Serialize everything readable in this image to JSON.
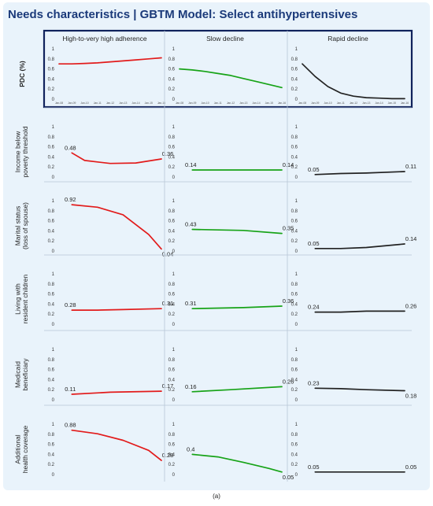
{
  "title": "Needs characteristics | GBTM Model: Select antihypertensives",
  "caption": "(a)",
  "colors": {
    "high_adherence": "#e21b1b",
    "slow_decline": "#17a317",
    "rapid_decline": "#222222",
    "panel_bg": "#e9f3fb",
    "title": "#1b3a7a",
    "highlight_border": "#10225c"
  },
  "chart_data": {
    "type": "line",
    "columns": [
      "High-to-very high adherence",
      "Slow decline",
      "Rapid decline"
    ],
    "x": [
      "Jan-08",
      "Jan-09",
      "Jan-10",
      "Jan-11",
      "Jan-12",
      "Jan-13",
      "Jan-14",
      "Jan-15",
      "Jan-16"
    ],
    "y_ticks": [
      "0",
      "0.2",
      "0.4",
      "0.6",
      "0.8",
      "1"
    ],
    "ylim": [
      0,
      1
    ],
    "rows": [
      {
        "label": "PDC (%)",
        "series": [
          {
            "x": [
              0,
              1,
              2,
              3,
              4,
              5,
              6,
              7,
              8
            ],
            "values": [
              0.7,
              0.7,
              0.71,
              0.72,
              0.74,
              0.76,
              0.78,
              0.8,
              0.82
            ],
            "labels": []
          },
          {
            "x": [
              0,
              1,
              2,
              3,
              4,
              5,
              6,
              7,
              8
            ],
            "values": [
              0.6,
              0.58,
              0.55,
              0.51,
              0.47,
              0.41,
              0.35,
              0.29,
              0.23
            ],
            "labels": []
          },
          {
            "x": [
              0,
              1,
              2,
              3,
              4,
              5,
              6,
              7,
              8
            ],
            "values": [
              0.7,
              0.45,
              0.25,
              0.12,
              0.06,
              0.03,
              0.02,
              0.01,
              0.01
            ],
            "labels": []
          }
        ]
      },
      {
        "label": "Income below poverty threshold",
        "series": [
          {
            "x": [
              1,
              2,
              4,
              6,
              8
            ],
            "values": [
              0.48,
              0.33,
              0.27,
              0.28,
              0.36
            ],
            "labels": [
              "0.48",
              "",
              "",
              "",
              "0.36"
            ]
          },
          {
            "x": [
              1,
              8
            ],
            "values": [
              0.14,
              0.14
            ],
            "labels": [
              "0.14",
              "0.14"
            ]
          },
          {
            "x": [
              1,
              3,
              5,
              8
            ],
            "values": [
              0.05,
              0.07,
              0.08,
              0.11
            ],
            "labels": [
              "0.05",
              "",
              "",
              "0.11"
            ]
          }
        ]
      },
      {
        "label": "Marital status (loss of spouse)",
        "series": [
          {
            "x": [
              1,
              3,
              5,
              7,
              8
            ],
            "values": [
              0.92,
              0.87,
              0.72,
              0.33,
              0.04
            ],
            "labels": [
              "0.92",
              "",
              "",
              "",
              "0.04"
            ]
          },
          {
            "x": [
              1,
              5,
              8
            ],
            "values": [
              0.43,
              0.41,
              0.35
            ],
            "labels": [
              "0.43",
              "",
              "0.35"
            ]
          },
          {
            "x": [
              1,
              3,
              5,
              8
            ],
            "values": [
              0.05,
              0.05,
              0.07,
              0.14
            ],
            "labels": [
              "0.05",
              "",
              "",
              "0.14"
            ]
          }
        ]
      },
      {
        "label": "Living with resident children",
        "series": [
          {
            "x": [
              1,
              3,
              5,
              8
            ],
            "values": [
              0.28,
              0.28,
              0.29,
              0.31
            ],
            "labels": [
              "0.28",
              "",
              "",
              "0.31"
            ]
          },
          {
            "x": [
              1,
              5,
              8
            ],
            "values": [
              0.31,
              0.33,
              0.36
            ],
            "labels": [
              "0.31",
              "",
              "0.36"
            ]
          },
          {
            "x": [
              1,
              3,
              5,
              8
            ],
            "values": [
              0.24,
              0.24,
              0.26,
              0.26
            ],
            "labels": [
              "0.24",
              "",
              "",
              "0.26"
            ]
          }
        ]
      },
      {
        "label": "Medicaid beneficiary",
        "series": [
          {
            "x": [
              1,
              4,
              8
            ],
            "values": [
              0.11,
              0.15,
              0.17
            ],
            "labels": [
              "0.11",
              "",
              "0.17"
            ]
          },
          {
            "x": [
              1,
              4,
              8
            ],
            "values": [
              0.16,
              0.2,
              0.26
            ],
            "labels": [
              "0.16",
              "",
              "0.26"
            ]
          },
          {
            "x": [
              1,
              3,
              5,
              8
            ],
            "values": [
              0.23,
              0.22,
              0.2,
              0.18
            ],
            "labels": [
              "0.23",
              "",
              "",
              "0.18"
            ]
          }
        ]
      },
      {
        "label": "Additional health coverage",
        "series": [
          {
            "x": [
              1,
              3,
              5,
              7,
              8
            ],
            "values": [
              0.88,
              0.81,
              0.68,
              0.48,
              0.28
            ],
            "labels": [
              "0.88",
              "",
              "",
              "",
              "0.28"
            ]
          },
          {
            "x": [
              1,
              3,
              5,
              7,
              8
            ],
            "values": [
              0.4,
              0.35,
              0.24,
              0.12,
              0.05
            ],
            "labels": [
              "0.4",
              "",
              "",
              "",
              "0.05"
            ]
          },
          {
            "x": [
              1,
              8
            ],
            "values": [
              0.05,
              0.05
            ],
            "labels": [
              "0.05",
              "0.05"
            ]
          }
        ]
      }
    ]
  }
}
